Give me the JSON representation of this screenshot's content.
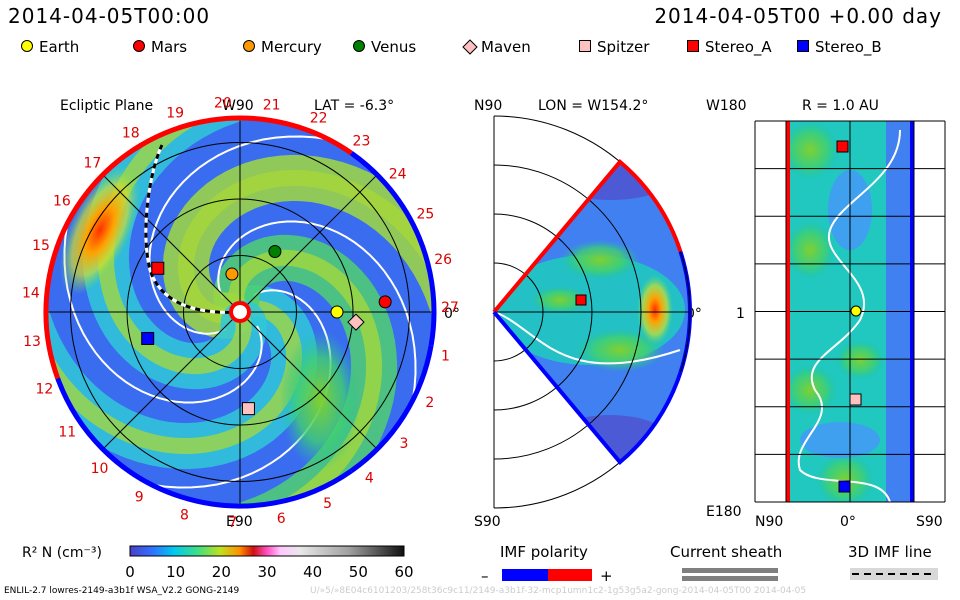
{
  "header": {
    "datetime": "2014-04-05T00:00",
    "right": "2014-04-05T00 +0.00 day"
  },
  "legend": [
    {
      "name": "Earth",
      "shape": "circle",
      "color": "#ffff00"
    },
    {
      "name": "Mars",
      "shape": "circle",
      "color": "#ff0000"
    },
    {
      "name": "Mercury",
      "shape": "circle",
      "color": "#ff9900"
    },
    {
      "name": "Venus",
      "shape": "circle",
      "color": "#008000"
    },
    {
      "name": "Maven",
      "shape": "diamond",
      "color": "#ffc0c0"
    },
    {
      "name": "Spitzer",
      "shape": "square",
      "color": "#ffc0c0"
    },
    {
      "name": "Stereo_A",
      "shape": "square",
      "color": "#ff0000"
    },
    {
      "name": "Stereo_B",
      "shape": "square",
      "color": "#0000ff"
    }
  ],
  "chart_data": [
    {
      "type": "heatmap",
      "title": "Ecliptic Plane",
      "lat_label": "LAT = -6.3°",
      "top_label": "W90",
      "bottom_label": "E90",
      "right_label": "0°",
      "carrington_rotations": [
        "19",
        "20",
        "21",
        "22",
        "23",
        "24",
        "25",
        "26",
        "27",
        "1",
        "2",
        "3",
        "4",
        "5",
        "6",
        "7",
        "8",
        "9",
        "10",
        "11",
        "12",
        "13",
        "14",
        "15",
        "16",
        "17",
        "18"
      ],
      "bodies": [
        {
          "name": "Earth",
          "lon_deg": 0,
          "r_au": 1.0
        },
        {
          "name": "Mars",
          "lon_deg": 4,
          "r_au": 1.5
        },
        {
          "name": "Mercury",
          "lon_deg": 102,
          "r_au": 0.4
        },
        {
          "name": "Venus",
          "lon_deg": 60,
          "r_au": 0.72
        },
        {
          "name": "Maven",
          "lon_deg": -5,
          "r_au": 1.2
        },
        {
          "name": "Spitzer",
          "lon_deg": -85,
          "r_au": 1.0
        },
        {
          "name": "Stereo_A",
          "lon_deg": 152,
          "r_au": 0.96
        },
        {
          "name": "Stereo_B",
          "lon_deg": -164,
          "r_au": 0.99
        }
      ]
    },
    {
      "type": "heatmap",
      "title": "LON = W154.2°",
      "top_label": "N90",
      "bottom_label": "S90",
      "right_label": "0°"
    },
    {
      "type": "heatmap",
      "title": "R = 1.0 AU",
      "top_label": "W180",
      "bottom_label": "E180",
      "mid_label": "1",
      "x_ticks": [
        "N90",
        "0°",
        "S90"
      ]
    }
  ],
  "colorbar": {
    "label": "R² N (cm⁻³)",
    "ticks": [
      "0",
      "10",
      "20",
      "30",
      "40",
      "50",
      "60"
    ],
    "range": [
      0,
      60
    ]
  },
  "imf_polarity": {
    "label": "IMF polarity",
    "minus": "–",
    "plus": "+",
    "colors": [
      "#0000ff",
      "#ff0000"
    ]
  },
  "current_sheath": {
    "label": "Current sheath"
  },
  "imf_line": {
    "label": "3D IMF line"
  },
  "footer": {
    "left": "ENLIL-2.7 lowres-2149-a3b1f WSA_V2.2 GONG-2149",
    "right": "U/»5/»8E04c6101203/258t36c9c11/2149-a3b1f-32-mcp1umn1c2-1g53g5a2-gong-2014-04-05T00   2014-04-05"
  }
}
